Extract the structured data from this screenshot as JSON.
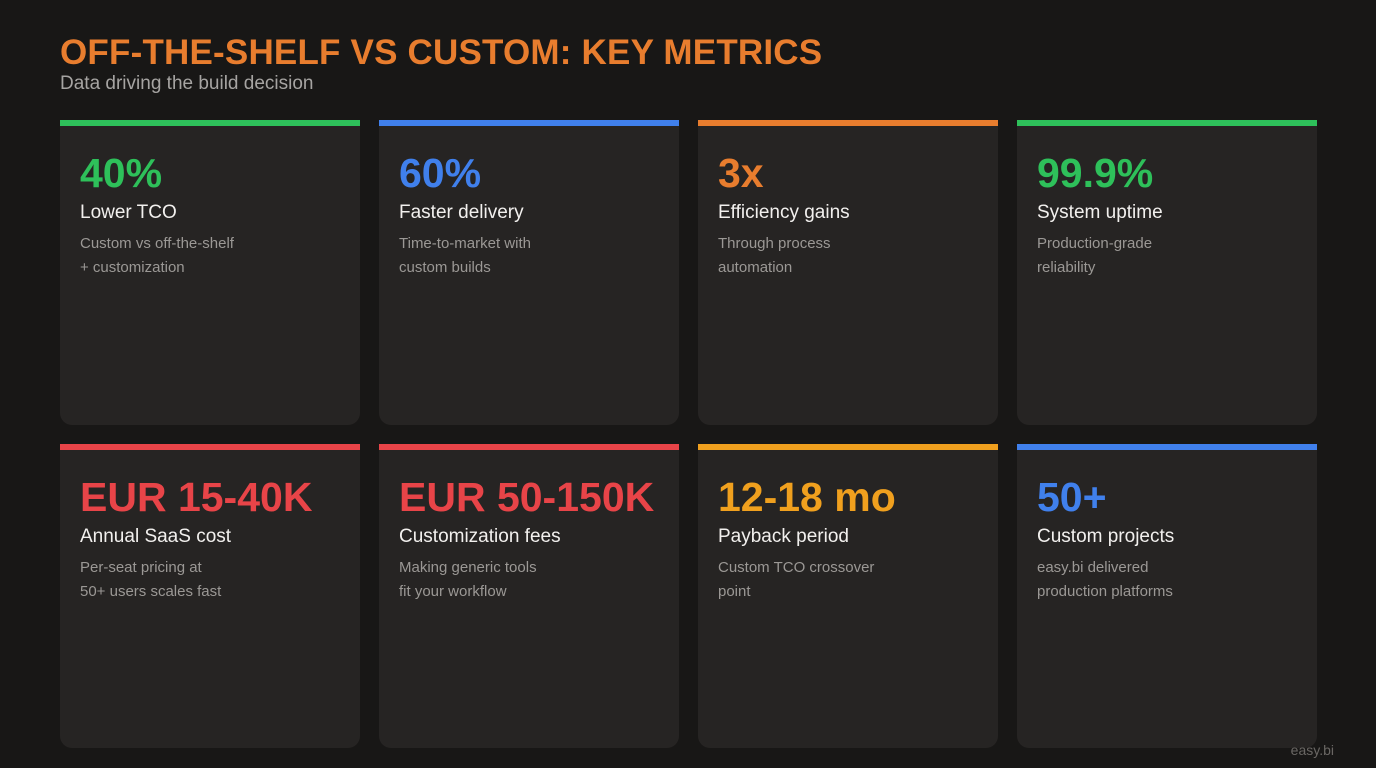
{
  "header": {
    "title": "OFF-THE-SHELF VS CUSTOM: KEY METRICS",
    "subtitle": "Data driving the build decision"
  },
  "colors": {
    "accent": "#e87d2e",
    "green": "#2ec05a",
    "blue": "#4080ec",
    "orange": "#e87d2e",
    "red": "#e84448",
    "amber": "#f0a01e"
  },
  "cards": [
    {
      "value": "40%",
      "label": "Lower TCO",
      "desc": [
        "Custom vs off-the-shelf",
        "+ customization"
      ],
      "color": "#2ec05a"
    },
    {
      "value": "60%",
      "label": "Faster delivery",
      "desc": [
        "Time-to-market with",
        "custom builds"
      ],
      "color": "#4080ec"
    },
    {
      "value": "3x",
      "label": "Efficiency gains",
      "desc": [
        "Through process",
        "automation"
      ],
      "color": "#e87d2e"
    },
    {
      "value": "99.9%",
      "label": "System uptime",
      "desc": [
        "Production-grade",
        "reliability"
      ],
      "color": "#2ec05a"
    },
    {
      "value": "EUR 15-40K",
      "label": "Annual SaaS cost",
      "desc": [
        "Per-seat pricing at",
        "50+ users scales fast"
      ],
      "color": "#e84448"
    },
    {
      "value": "EUR 50-150K",
      "label": "Customization fees",
      "desc": [
        "Making generic tools",
        "fit your workflow"
      ],
      "color": "#e84448"
    },
    {
      "value": "12-18 mo",
      "label": "Payback period",
      "desc": [
        "Custom TCO crossover",
        "point"
      ],
      "color": "#f0a01e"
    },
    {
      "value": "50+",
      "label": "Custom projects",
      "desc": [
        "easy.bi delivered",
        "production platforms"
      ],
      "color": "#4080ec"
    }
  ],
  "footer": {
    "brand": "easy.bi"
  }
}
